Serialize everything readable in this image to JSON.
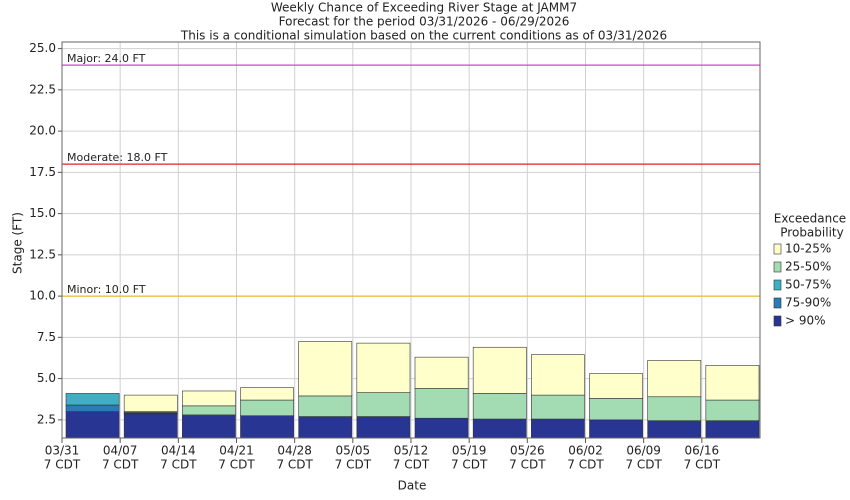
{
  "chart_data": {
    "type": "stage_exceedance",
    "title": [
      "Weekly Chance of Exceeding River Stage at JAMM7",
      "Forecast for the period 03/31/2026 - 06/29/2026",
      "This is a conditional simulation based on the current conditions as of 03/31/2026"
    ],
    "x_label": "Date",
    "y_label": "Stage (FT)",
    "categories": [
      "03/31",
      "04/07",
      "04/14",
      "04/21",
      "04/28",
      "05/05",
      "05/12",
      "05/19",
      "05/26",
      "06/02",
      "06/09",
      "06/16"
    ],
    "x_tick_sublabel": "7 CDT",
    "ylim": [
      1.4,
      25.4
    ],
    "yticks": [
      2.5,
      {
        "value": 5,
        "label": "5.0"
      },
      7.5,
      {
        "value": 10,
        "label": "10.0"
      },
      12.5,
      {
        "value": 15,
        "label": "15.0"
      },
      17.5,
      {
        "value": 20,
        "label": "20.0"
      },
      22.5,
      {
        "value": 25,
        "label": "25.0"
      }
    ],
    "grid": true,
    "legend_title": [
      "Exceedance",
      "Probability"
    ],
    "series": [
      {
        "name": "> 90%",
        "color": "#283593",
        "values": [
          3.0,
          2.86,
          2.75,
          2.75,
          2.7,
          2.7,
          2.6,
          2.55,
          2.55,
          2.5,
          2.45,
          2.45
        ]
      },
      {
        "name": "75-90%",
        "color": "#2b7bba",
        "values": [
          3.4,
          2.9,
          2.75,
          2.75,
          2.7,
          2.7,
          2.6,
          2.55,
          2.55,
          2.5,
          2.45,
          2.45
        ]
      },
      {
        "name": "50-75%",
        "color": "#3fb0c4",
        "values": [
          4.1,
          2.95,
          2.8,
          2.75,
          2.7,
          2.7,
          2.6,
          2.55,
          2.55,
          2.5,
          2.45,
          2.45
        ]
      },
      {
        "name": "25-50%",
        "color": "#a3dcb2",
        "values": [
          4.1,
          3.0,
          3.35,
          3.7,
          3.95,
          4.15,
          4.4,
          4.1,
          4.0,
          3.8,
          3.9,
          3.7
        ]
      },
      {
        "name": "10-25%",
        "color": "#ffffcc",
        "values": [
          4.1,
          4.0,
          4.25,
          4.45,
          7.25,
          7.15,
          6.3,
          6.9,
          6.45,
          5.3,
          6.1,
          5.8
        ]
      }
    ],
    "flood_levels": [
      {
        "label": "Major: 24.0 FT",
        "value": 24,
        "color": "#cc44cc"
      },
      {
        "label": "Moderate: 18.0 FT",
        "value": 18,
        "color": "#dd2222"
      },
      {
        "label": "Minor: 10.0 FT",
        "value": 10,
        "color": "#e8c020"
      }
    ]
  }
}
